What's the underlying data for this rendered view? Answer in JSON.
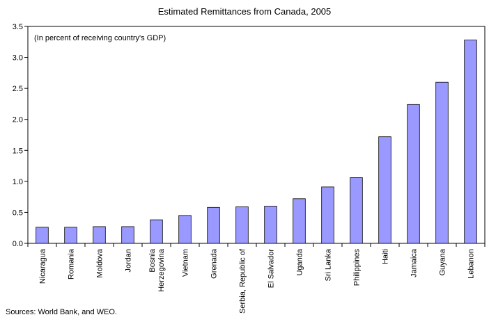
{
  "chart_data": {
    "type": "bar",
    "title": "Estimated Remittances from Canada, 2005",
    "subtitle": "(In percent of receiving country's GDP)",
    "categories": [
      "Nicaragua",
      "Romania",
      "Moldova",
      "Jordan",
      "Bosnia\nHerzegovina",
      "Vietnam",
      "Grenada",
      "Serbia, Republic of",
      "El Salvador",
      "Uganda",
      "Sri Lanka",
      "Philippines",
      "Haiti",
      "Jamaica",
      "Guyana",
      "Lebanon"
    ],
    "values": [
      0.26,
      0.26,
      0.27,
      0.27,
      0.38,
      0.45,
      0.58,
      0.59,
      0.6,
      0.72,
      0.91,
      1.06,
      1.72,
      2.24,
      2.6,
      3.28
    ],
    "ylim": [
      0,
      3.5
    ],
    "yticks": [
      0.0,
      0.5,
      1.0,
      1.5,
      2.0,
      2.5,
      3.0,
      3.5
    ],
    "ytick_labels": [
      "0.0",
      "0.5",
      "1.0",
      "1.5",
      "2.0",
      "2.5",
      "3.0",
      "3.5"
    ],
    "xlabel": "",
    "ylabel": "",
    "grid": false,
    "legend": "none",
    "bar_color": "#9999FF",
    "bar_edge_color": "#000000"
  },
  "source_note": "Sources: World Bank, and WEO."
}
